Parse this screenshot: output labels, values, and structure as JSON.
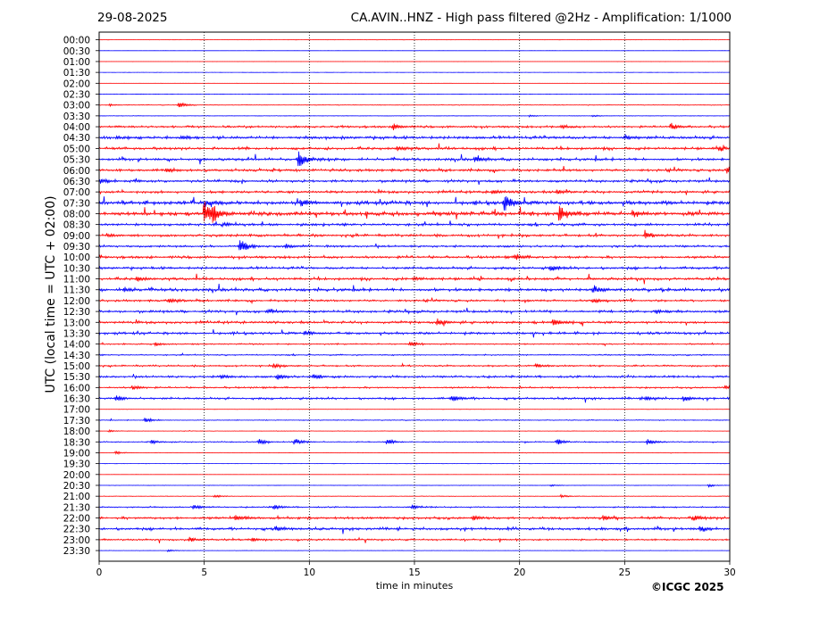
{
  "header": {
    "date": "29-08-2025",
    "title": "CA.AVIN..HNZ - High pass filtered @2Hz - Amplification: 1/1000"
  },
  "footer": {
    "copyright": "©ICGC 2025"
  },
  "colors": {
    "red": "#ff0000",
    "blue": "#0000ff",
    "axis": "#000000",
    "grid": "#000000"
  },
  "chart_data": {
    "type": "line",
    "title": "CA.AVIN..HNZ - High pass filtered @2Hz - Amplification: 1/1000",
    "xlabel": "time in minutes",
    "ylabel": "UTC (local time = UTC + 02:00)",
    "xlim": [
      0,
      30
    ],
    "x_ticks": [
      "0",
      "5",
      "10",
      "15",
      "20",
      "25",
      "30"
    ],
    "vertical_gridlines_at": [
      5,
      10,
      15,
      20,
      25
    ],
    "grid": "dotted vertical",
    "trace_color_order": [
      "red",
      "blue"
    ],
    "rows": [
      {
        "label": "00:00",
        "activity": 0.02,
        "events": []
      },
      {
        "label": "00:30",
        "activity": 0.02,
        "events": []
      },
      {
        "label": "01:00",
        "activity": 0.02,
        "events": []
      },
      {
        "label": "01:30",
        "activity": 0.02,
        "events": []
      },
      {
        "label": "02:00",
        "activity": 0.02,
        "events": []
      },
      {
        "label": "02:30",
        "activity": 0.03,
        "events": [
          {
            "t": 25.0,
            "a": 0.15
          }
        ]
      },
      {
        "label": "03:00",
        "activity": 0.08,
        "events": [
          {
            "t": 3.8,
            "a": 0.5
          },
          {
            "t": 0.5,
            "a": 0.2
          }
        ]
      },
      {
        "label": "03:30",
        "activity": 0.05,
        "events": [
          {
            "t": 20.5,
            "a": 0.2
          },
          {
            "t": 23.5,
            "a": 0.2
          }
        ]
      },
      {
        "label": "04:00",
        "activity": 0.25,
        "events": [
          {
            "t": 14.0,
            "a": 0.6
          },
          {
            "t": 27.2,
            "a": 0.6
          },
          {
            "t": 22.0,
            "a": 0.3
          }
        ]
      },
      {
        "label": "04:30",
        "activity": 0.35,
        "events": [
          {
            "t": 4.0,
            "a": 0.3
          },
          {
            "t": 25.0,
            "a": 0.4
          }
        ]
      },
      {
        "label": "05:00",
        "activity": 0.3,
        "events": [
          {
            "t": 14.2,
            "a": 0.4
          },
          {
            "t": 29.5,
            "a": 0.4
          }
        ]
      },
      {
        "label": "05:30",
        "activity": 0.3,
        "events": [
          {
            "t": 9.5,
            "a": 1.8
          },
          {
            "t": 17.9,
            "a": 0.7
          }
        ]
      },
      {
        "label": "06:00",
        "activity": 0.3,
        "events": [
          {
            "t": 29.9,
            "a": 0.8
          },
          {
            "t": 3.2,
            "a": 0.4
          }
        ]
      },
      {
        "label": "06:30",
        "activity": 0.3,
        "events": [
          {
            "t": 0.1,
            "a": 0.5
          }
        ]
      },
      {
        "label": "07:00",
        "activity": 0.3,
        "events": [
          {
            "t": 18.7,
            "a": 0.4
          },
          {
            "t": 21.8,
            "a": 0.4
          }
        ]
      },
      {
        "label": "07:30",
        "activity": 0.45,
        "events": [
          {
            "t": 19.3,
            "a": 1.6
          },
          {
            "t": 9.6,
            "a": 0.7
          },
          {
            "t": 5.0,
            "a": 0.6
          }
        ]
      },
      {
        "label": "08:00",
        "activity": 0.45,
        "events": [
          {
            "t": 5.0,
            "a": 2.2
          },
          {
            "t": 5.4,
            "a": 1.5
          },
          {
            "t": 21.9,
            "a": 1.6
          },
          {
            "t": 25.4,
            "a": 0.6
          }
        ]
      },
      {
        "label": "08:30",
        "activity": 0.3,
        "events": [
          {
            "t": 6.0,
            "a": 0.4
          }
        ]
      },
      {
        "label": "09:00",
        "activity": 0.3,
        "events": [
          {
            "t": 26.0,
            "a": 0.6
          },
          {
            "t": 0.4,
            "a": 0.3
          }
        ]
      },
      {
        "label": "09:30",
        "activity": 0.25,
        "events": [
          {
            "t": 6.7,
            "a": 1.8
          },
          {
            "t": 8.9,
            "a": 0.4
          }
        ]
      },
      {
        "label": "10:00",
        "activity": 0.3,
        "events": [
          {
            "t": 19.8,
            "a": 0.5
          }
        ]
      },
      {
        "label": "10:30",
        "activity": 0.3,
        "events": [
          {
            "t": 21.5,
            "a": 0.5
          }
        ]
      },
      {
        "label": "11:00",
        "activity": 0.3,
        "events": [
          {
            "t": 1.8,
            "a": 0.4
          },
          {
            "t": 15.0,
            "a": 0.3
          }
        ]
      },
      {
        "label": "11:30",
        "activity": 0.35,
        "events": [
          {
            "t": 23.5,
            "a": 0.7
          },
          {
            "t": 1.2,
            "a": 0.4
          }
        ]
      },
      {
        "label": "12:00",
        "activity": 0.25,
        "events": [
          {
            "t": 3.3,
            "a": 0.5
          },
          {
            "t": 23.5,
            "a": 0.5
          }
        ]
      },
      {
        "label": "12:30",
        "activity": 0.3,
        "events": [
          {
            "t": 8.0,
            "a": 0.4
          },
          {
            "t": 26.5,
            "a": 0.4
          }
        ]
      },
      {
        "label": "13:00",
        "activity": 0.3,
        "events": [
          {
            "t": 16.1,
            "a": 0.6
          },
          {
            "t": 21.6,
            "a": 0.7
          }
        ]
      },
      {
        "label": "13:30",
        "activity": 0.3,
        "events": [
          {
            "t": 9.8,
            "a": 0.4
          }
        ]
      },
      {
        "label": "14:00",
        "activity": 0.15,
        "events": [
          {
            "t": 14.8,
            "a": 0.6
          },
          {
            "t": 2.7,
            "a": 0.3
          }
        ]
      },
      {
        "label": "14:30",
        "activity": 0.15,
        "events": []
      },
      {
        "label": "15:00",
        "activity": 0.2,
        "events": [
          {
            "t": 8.3,
            "a": 0.4
          },
          {
            "t": 20.8,
            "a": 0.4
          }
        ]
      },
      {
        "label": "15:30",
        "activity": 0.25,
        "events": [
          {
            "t": 5.8,
            "a": 0.4
          },
          {
            "t": 8.5,
            "a": 0.5
          },
          {
            "t": 10.2,
            "a": 0.5
          }
        ]
      },
      {
        "label": "16:00",
        "activity": 0.2,
        "events": [
          {
            "t": 1.6,
            "a": 0.4
          },
          {
            "t": 29.8,
            "a": 0.4
          }
        ]
      },
      {
        "label": "16:30",
        "activity": 0.25,
        "events": [
          {
            "t": 16.8,
            "a": 0.7
          },
          {
            "t": 26.0,
            "a": 0.5
          },
          {
            "t": 27.8,
            "a": 0.5
          },
          {
            "t": 0.8,
            "a": 0.6
          }
        ]
      },
      {
        "label": "17:00",
        "activity": 0.03,
        "events": []
      },
      {
        "label": "17:30",
        "activity": 0.1,
        "events": [
          {
            "t": 2.2,
            "a": 0.5
          }
        ]
      },
      {
        "label": "18:00",
        "activity": 0.05,
        "events": [
          {
            "t": 0.5,
            "a": 0.2
          }
        ]
      },
      {
        "label": "18:30",
        "activity": 0.12,
        "events": [
          {
            "t": 7.6,
            "a": 0.6
          },
          {
            "t": 9.3,
            "a": 0.7
          },
          {
            "t": 13.7,
            "a": 0.6
          },
          {
            "t": 21.8,
            "a": 0.6
          },
          {
            "t": 26.1,
            "a": 0.6
          },
          {
            "t": 2.5,
            "a": 0.4
          }
        ]
      },
      {
        "label": "19:00",
        "activity": 0.05,
        "events": [
          {
            "t": 0.8,
            "a": 0.3
          }
        ]
      },
      {
        "label": "19:30",
        "activity": 0.02,
        "events": []
      },
      {
        "label": "20:00",
        "activity": 0.02,
        "events": []
      },
      {
        "label": "20:30",
        "activity": 0.04,
        "events": [
          {
            "t": 21.5,
            "a": 0.2
          },
          {
            "t": 29.0,
            "a": 0.3
          }
        ]
      },
      {
        "label": "21:00",
        "activity": 0.06,
        "events": [
          {
            "t": 5.5,
            "a": 0.3
          },
          {
            "t": 22.0,
            "a": 0.3
          }
        ]
      },
      {
        "label": "21:30",
        "activity": 0.15,
        "events": [
          {
            "t": 4.5,
            "a": 0.4
          },
          {
            "t": 8.3,
            "a": 0.5
          },
          {
            "t": 14.9,
            "a": 0.4
          }
        ]
      },
      {
        "label": "22:00",
        "activity": 0.3,
        "events": [
          {
            "t": 6.5,
            "a": 0.5
          },
          {
            "t": 17.8,
            "a": 0.4
          },
          {
            "t": 24.0,
            "a": 0.5
          },
          {
            "t": 28.3,
            "a": 0.5
          }
        ]
      },
      {
        "label": "22:30",
        "activity": 0.3,
        "events": [
          {
            "t": 8.4,
            "a": 0.4
          },
          {
            "t": 28.6,
            "a": 0.5
          }
        ]
      },
      {
        "label": "23:00",
        "activity": 0.2,
        "events": [
          {
            "t": 4.3,
            "a": 0.5
          },
          {
            "t": 7.3,
            "a": 0.4
          }
        ]
      },
      {
        "label": "23:30",
        "activity": 0.04,
        "events": [
          {
            "t": 3.3,
            "a": 0.2
          }
        ]
      }
    ]
  }
}
